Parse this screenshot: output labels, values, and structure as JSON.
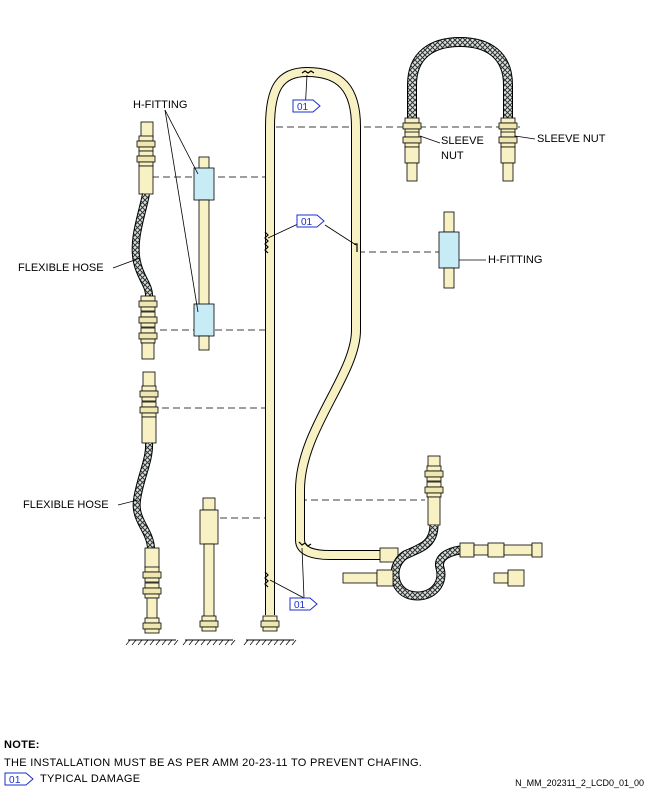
{
  "labels": {
    "h_fitting_left": "H-FITTING",
    "h_fitting_right": "H-FITTING",
    "flexible_hose_top": "FLEXIBLE HOSE",
    "flexible_hose_bottom": "FLEXIBLE HOSE",
    "sleeve_nut_left_line1": "SLEEVE",
    "sleeve_nut_left_line2": "NUT",
    "sleeve_nut_right": "SLEEVE NUT"
  },
  "damage_tag": "01",
  "note": {
    "title": "NOTE:",
    "text": "THE INSTALLATION MUST BE AS PER AMM 20-23-11 TO PREVENT CHAFING.",
    "legend_tag": "01",
    "legend_text": "TYPICAL DAMAGE"
  },
  "reference": "N_MM_202311_2_LCD0_01_00",
  "colors": {
    "tube": "#f7f1c4",
    "tag": "#1a2fd0",
    "hfitting": "#c8ecf6",
    "hose": "#3d4a4a"
  }
}
